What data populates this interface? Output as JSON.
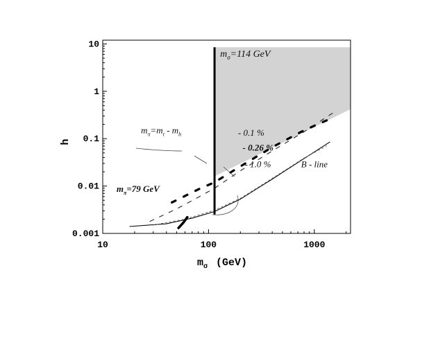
{
  "chart_data": {
    "type": "line",
    "title": "",
    "xlabel": "m",
    "xlabel_sub": "σ",
    "xlabel_unit": "(GeV)",
    "ylabel": "h",
    "x_scale": "log",
    "y_scale": "log",
    "xlim": [
      10,
      2200
    ],
    "ylim": [
      0.001,
      12
    ],
    "x_ticks": [
      {
        "value": 10,
        "label": "10"
      },
      {
        "value": 100,
        "label": "100"
      },
      {
        "value": 1000,
        "label": "1000"
      }
    ],
    "y_ticks": [
      {
        "value": 0.001,
        "label": "0.001"
      },
      {
        "value": 0.01,
        "label": "0.01"
      },
      {
        "value": 0.1,
        "label": "0.1"
      },
      {
        "value": 1,
        "label": "1"
      },
      {
        "value": 10,
        "label": "10"
      }
    ],
    "grid": false,
    "legend": "none",
    "shaded_region": {
      "color": "#d3d3d3",
      "points": [
        [
          114,
          0.016
        ],
        [
          2200,
          0.42
        ],
        [
          2200,
          8.5
        ],
        [
          114,
          8.5
        ]
      ]
    },
    "vertical_line": {
      "x": 114,
      "y_range": [
        0.0025,
        8.5
      ],
      "label_main": "m",
      "label_sub": "σ",
      "label_rest": "=114 GeV"
    },
    "series": [
      {
        "style": "dashed-thin",
        "points": [
          [
            28,
            0.0018
          ],
          [
            50,
            0.0033
          ],
          [
            80,
            0.0058
          ],
          [
            114,
            0.009
          ],
          [
            200,
            0.021
          ],
          [
            400,
            0.055
          ],
          [
            800,
            0.14
          ],
          [
            1500,
            0.35
          ]
        ]
      },
      {
        "style": "dashed-thick",
        "points": [
          [
            45,
            0.0045
          ],
          [
            80,
            0.0085
          ],
          [
            114,
            0.012
          ],
          [
            200,
            0.026
          ],
          [
            400,
            0.066
          ],
          [
            800,
            0.15
          ],
          [
            1400,
            0.26
          ]
        ]
      },
      {
        "style": "solid-thin",
        "points": [
          [
            18,
            0.0014
          ],
          [
            40,
            0.0016
          ],
          [
            70,
            0.0021
          ],
          [
            114,
            0.0029
          ],
          [
            200,
            0.0053
          ],
          [
            400,
            0.014
          ],
          [
            800,
            0.038
          ],
          [
            1400,
            0.085
          ]
        ]
      },
      {
        "style": "dotted",
        "points": [
          [
            30,
            0.0015
          ],
          [
            60,
            0.002
          ],
          [
            114,
            0.0031
          ],
          [
            200,
            0.0055
          ],
          [
            400,
            0.0145
          ],
          [
            800,
            0.039
          ],
          [
            1300,
            0.07
          ]
        ]
      },
      {
        "style": "solid-thick",
        "points": [
          [
            52,
            0.0013
          ],
          [
            58,
            0.0017
          ],
          [
            63,
            0.0022
          ]
        ]
      }
    ],
    "annotations": [
      {
        "id": "pct-01",
        "text": "- 0.1 %",
        "x": 190,
        "y": 0.115
      },
      {
        "id": "pct-026",
        "text": "- 0.26 %",
        "x": 210,
        "y": 0.056
      },
      {
        "id": "pct-10",
        "text": "- 1.0 %",
        "x": 220,
        "y": 0.025
      },
      {
        "id": "bline",
        "text": "B - line",
        "x": 750,
        "y": 0.025
      },
      {
        "id": "mpi-diff",
        "text": "m",
        "sub": "π",
        "rest": "=m",
        "sub2": "t",
        "rest2": " - m",
        "sub3": "b",
        "x": 23,
        "y": 0.13
      },
      {
        "id": "mpi-79",
        "text": "m",
        "sub": "π",
        "rest": "=79 GeV",
        "x": 13.5,
        "y": 0.0075
      }
    ]
  }
}
